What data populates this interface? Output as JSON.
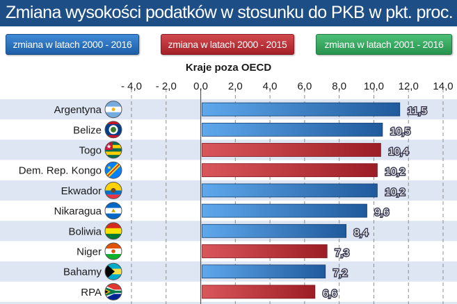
{
  "title": "Zmiana wysokości podatków w stosunku do PKB w pkt. proc.",
  "legend": [
    {
      "label": "zmiana w latach 2000 - 2016",
      "color": "#2e74c0"
    },
    {
      "label": "zmiana w latach 2000 - 2015",
      "color": "#bc343b"
    },
    {
      "label": "zmiana w latach 2001 - 2016",
      "color": "#37a862"
    }
  ],
  "chart_data": {
    "type": "bar",
    "orientation": "horizontal",
    "subtitle": "Kraje poza OECD",
    "xlim": [
      -4.0,
      14.0
    ],
    "ticks": [
      -4.0,
      -2.0,
      0.0,
      2.0,
      4.0,
      6.0,
      8.0,
      10.0,
      12.0,
      14.0
    ],
    "tick_labels": [
      "- 4,0",
      "- 2,0",
      "0,0",
      "2,0",
      "4,0",
      "6,0",
      "8,0",
      "10,0",
      "12,0",
      "14,0"
    ],
    "grid": true,
    "categories": [
      "Argentyna",
      "Belize",
      "Togo",
      "Dem. Rep. Kongo",
      "Ekwador",
      "Nikaragua",
      "Boliwia",
      "Niger",
      "Bahamy",
      "RPA"
    ],
    "values": [
      11.5,
      10.5,
      10.4,
      10.2,
      10.2,
      9.6,
      8.4,
      7.3,
      7.2,
      6.6
    ],
    "value_labels": [
      "11,5",
      "10,5",
      "10,4",
      "10,2",
      "10,2",
      "9,6",
      "8,4",
      "7,3",
      "7,2",
      "6,6"
    ],
    "period": [
      "2000-2016",
      "2000-2016",
      "2000-2015",
      "2000-2015",
      "2000-2016",
      "2000-2016",
      "2000-2016",
      "2000-2015",
      "2000-2016",
      "2000-2015"
    ],
    "flag_icons": [
      "argentina-flag-icon",
      "belize-flag-icon",
      "togo-flag-icon",
      "dr-congo-flag-icon",
      "ecuador-flag-icon",
      "nicaragua-flag-icon",
      "bolivia-flag-icon",
      "niger-flag-icon",
      "bahamas-flag-icon",
      "south-africa-flag-icon"
    ],
    "colors": {
      "2000-2016": "#2e74c0",
      "2000-2015": "#bc343b",
      "2001-2016": "#37a862"
    }
  }
}
